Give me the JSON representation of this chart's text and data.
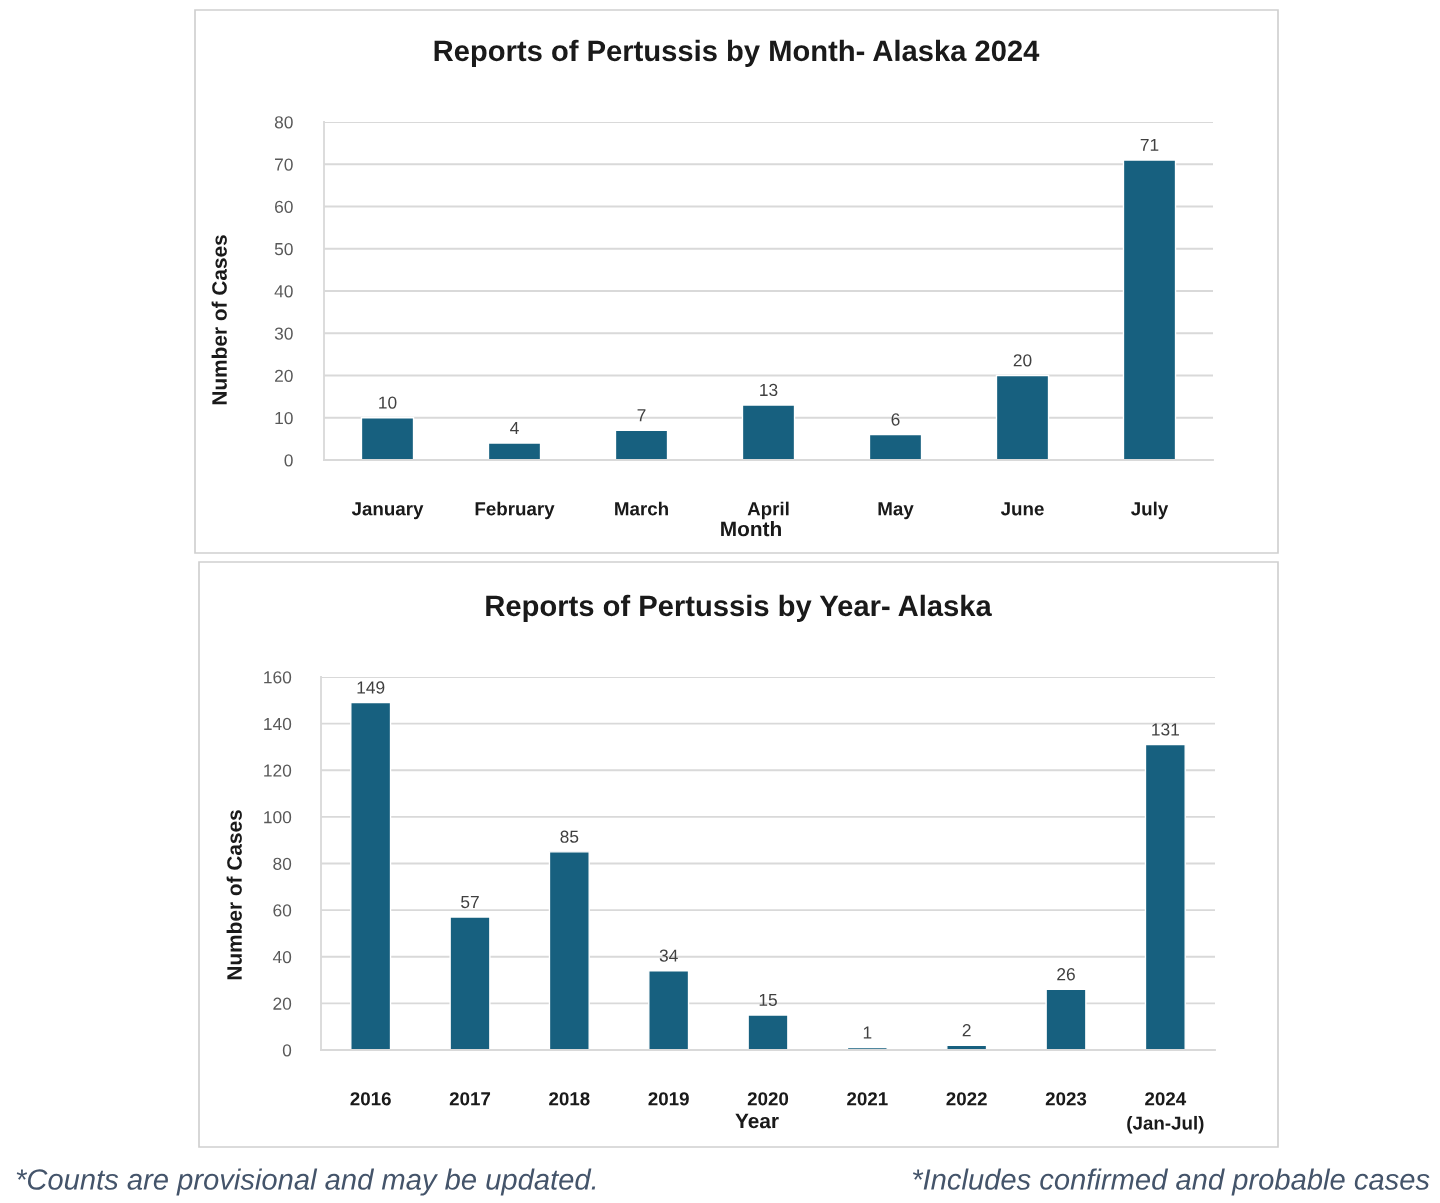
{
  "chart_data": [
    {
      "type": "bar",
      "title": "Reports of Pertussis by Month- Alaska 2024",
      "xlabel": "Month",
      "ylabel": "Number of Cases",
      "categories": [
        "January",
        "February",
        "March",
        "April",
        "May",
        "June",
        "July"
      ],
      "values": [
        10,
        4,
        7,
        13,
        6,
        20,
        71
      ],
      "color": "#17607f",
      "ylim": [
        0,
        80
      ],
      "yticks": [
        0,
        10,
        20,
        30,
        40,
        50,
        60,
        70,
        80
      ],
      "grid": "y",
      "data_labels": true
    },
    {
      "type": "bar",
      "title": "Reports of Pertussis by Year- Alaska",
      "xlabel": "Year",
      "ylabel": "Number of Cases",
      "categories": [
        "2016",
        "2017",
        "2018",
        "2019",
        "2020",
        "2021",
        "2022",
        "2023",
        "2024\n(Jan-Jul)"
      ],
      "values": [
        149,
        57,
        85,
        34,
        15,
        1,
        2,
        26,
        131
      ],
      "color": "#17607f",
      "ylim": [
        0,
        160
      ],
      "yticks": [
        0,
        20,
        40,
        60,
        80,
        100,
        120,
        140,
        160
      ],
      "grid": "y",
      "data_labels": true,
      "annotations": [
        "*Counts are provisional and may be updated.",
        "*Includes confirmed and probable cases"
      ]
    }
  ]
}
